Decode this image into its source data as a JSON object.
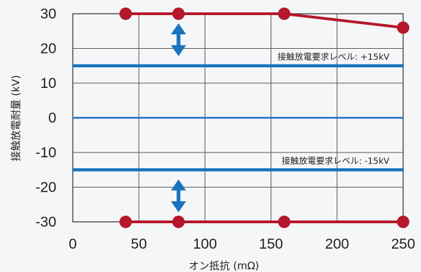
{
  "chart_data": {
    "type": "line",
    "xlabel": "オン抵抗 (mΩ)",
    "ylabel": "接触放電耐量 (kV)",
    "xlim": [
      0,
      250
    ],
    "ylim": [
      -30,
      30
    ],
    "x_ticks": [
      0,
      50,
      100,
      150,
      200,
      250
    ],
    "y_ticks": [
      30,
      20,
      10,
      0,
      -10,
      -20,
      -30
    ],
    "grid": true,
    "series": [
      {
        "key": "positive",
        "x": [
          40,
          80,
          160,
          250
        ],
        "y": [
          30,
          30,
          30,
          26
        ],
        "color": "#b5172b"
      },
      {
        "key": "negative",
        "x": [
          40,
          80,
          160,
          250
        ],
        "y": [
          -30,
          -30,
          -30,
          -30
        ],
        "color": "#b5172b"
      }
    ],
    "reference_lines": [
      {
        "y": 15,
        "label": "接触放電要求レベル: +15kV",
        "color": "#1a72c0"
      },
      {
        "y": -15,
        "label": "接触放電要求レベル: -15kV",
        "color": "#1a72c0"
      }
    ],
    "zero_line": {
      "y": 0,
      "color": "#1a72c0"
    },
    "margin_arrows": [
      {
        "x": 80,
        "from": 15,
        "to": 30,
        "color": "#1a72c0"
      },
      {
        "x": 80,
        "from": -15,
        "to": -30,
        "color": "#1a72c0"
      }
    ]
  }
}
